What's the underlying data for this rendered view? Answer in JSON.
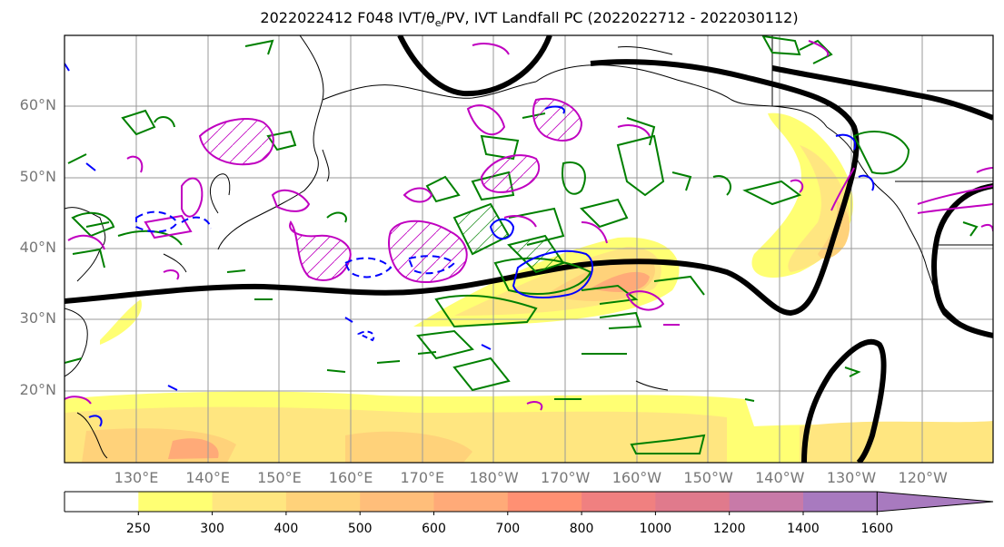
{
  "title": {
    "prefix": "2022022412 F048 IVT/",
    "theta": "θ",
    "theta_sub": "e",
    "suffix": "/PV, IVT Landfall PC (2022022712 - 2022030112)"
  },
  "lat_labels": [
    "60°N",
    "50°N",
    "40°N",
    "30°N",
    "20°N"
  ],
  "lon_labels": [
    "130°E",
    "140°E",
    "150°E",
    "160°E",
    "170°E",
    "180°W",
    "170°W",
    "160°W",
    "150°W",
    "140°W",
    "130°W",
    "120°W"
  ],
  "colorbar": {
    "ticks": [
      "250",
      "300",
      "400",
      "500",
      "600",
      "700",
      "800",
      "1000",
      "1200",
      "1400",
      "1600"
    ],
    "colors": [
      "#ffffff",
      "#ffff73",
      "#ffe680",
      "#ffd27a",
      "#ffbe7a",
      "#ffaa78",
      "#ff9073",
      "#f08080",
      "#e07a8c",
      "#c87aa8",
      "#a87abf"
    ]
  },
  "colors": {
    "ivt_contour_pc": "#000000",
    "theta_e": "#008000",
    "pv_positive": "#c000c0",
    "pv_negative": "#0000ff",
    "grid": "#999999"
  }
}
